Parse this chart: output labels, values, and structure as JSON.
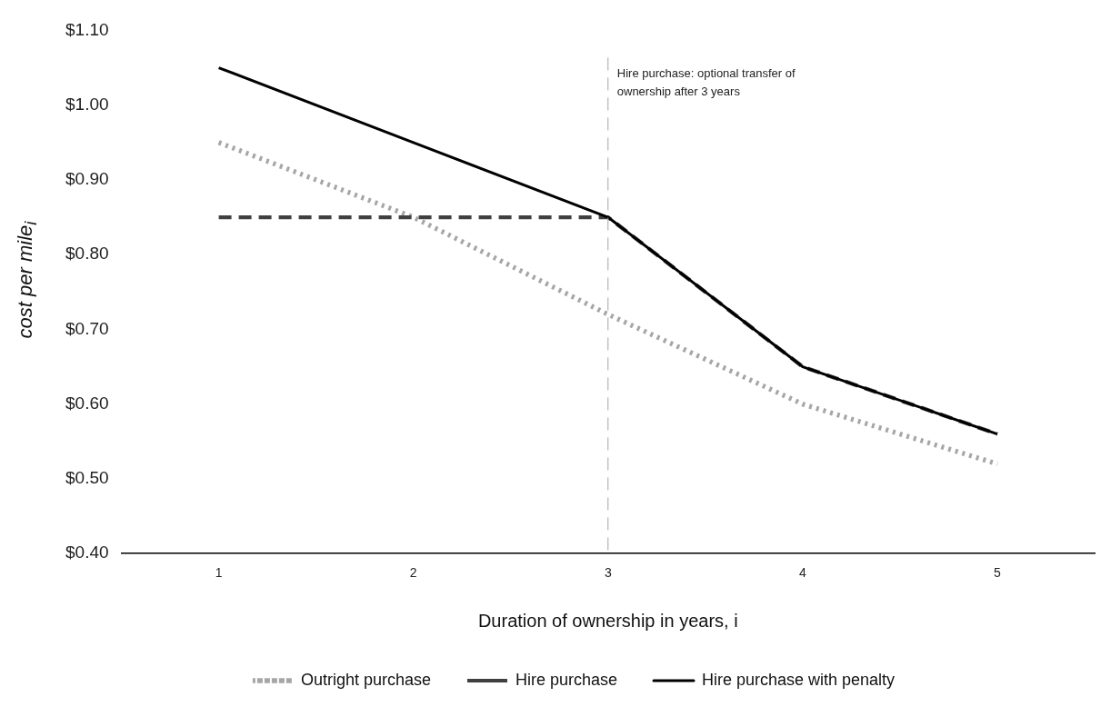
{
  "chart_data": {
    "type": "line",
    "xlabel": "Duration of ownership in years, i",
    "ylabel": "cost per mile$_{i}$",
    "categories": [
      "1",
      "2",
      "3",
      "4",
      "5"
    ],
    "series": [
      {
        "name": "Outright purchase",
        "color": "#a6a6a6",
        "line_style": "dotted",
        "values": [
          0.95,
          0.85,
          0.72,
          0.6,
          0.52
        ]
      },
      {
        "name": "Hire purchase",
        "color": "#404040",
        "line_style": "dashed",
        "values": [
          0.85,
          0.85,
          0.85,
          0.65,
          0.56
        ]
      },
      {
        "name": "Hire purchase with penalty",
        "color": "#000000",
        "line_style": "solid",
        "values": [
          1.05,
          0.95,
          0.85,
          0.65,
          0.56
        ]
      }
    ],
    "ylim": [
      0.4,
      1.1
    ],
    "yticks": [
      {
        "value": 0.4,
        "label": "$0.40"
      },
      {
        "value": 0.5,
        "label": "$0.50"
      },
      {
        "value": 0.6,
        "label": "$0.60"
      },
      {
        "value": 0.7,
        "label": "$0.70"
      },
      {
        "value": 0.8,
        "label": "$0.80"
      },
      {
        "value": 0.9,
        "label": "$0.90"
      },
      {
        "value": 1.0,
        "label": "$1.00"
      },
      {
        "value": 1.1,
        "label": "$1.10"
      }
    ],
    "ref_lines": [
      {
        "axis": "x",
        "value": "3",
        "label": "Hire purchase: optional transfer of ownership after 3 years",
        "color": "#a6a6a6",
        "line_style": "dashed"
      }
    ],
    "grid": false,
    "legend": "bottom",
    "marker": "none"
  }
}
